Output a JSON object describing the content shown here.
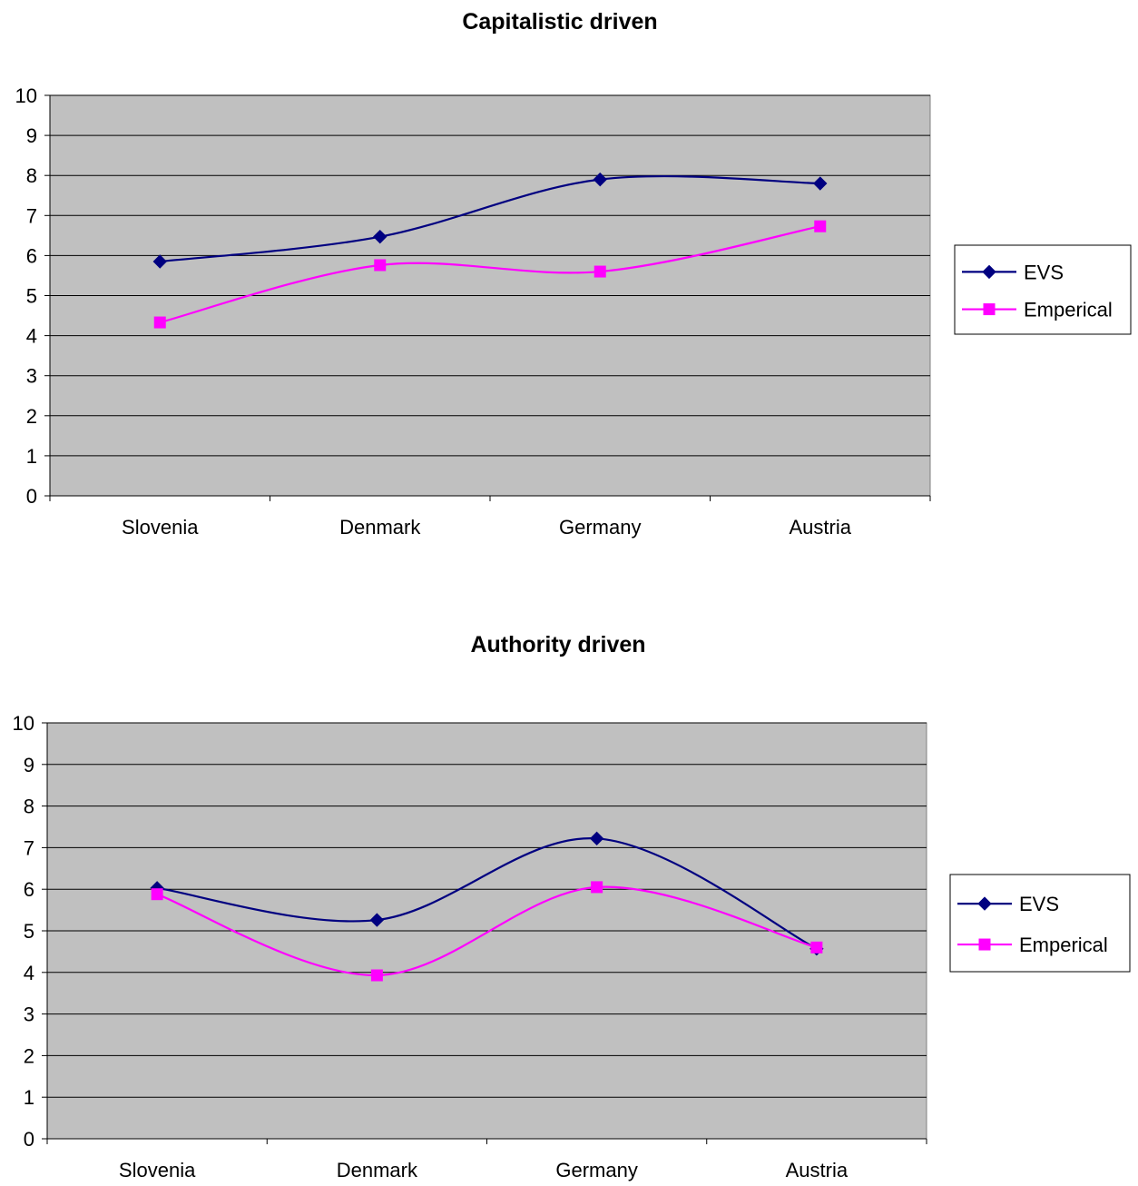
{
  "colors": {
    "plot_background": "#c0c0c0",
    "grid": "#000000",
    "evs": "#000080",
    "emperical": "#ff00ff"
  },
  "chart_data": [
    {
      "type": "line",
      "title": "Capitalistic driven",
      "categories": [
        "Slovenia",
        "Denmark",
        "Germany",
        "Austria"
      ],
      "series": [
        {
          "name": "EVS",
          "marker": "diamond",
          "values": [
            5.85,
            6.47,
            7.9,
            7.8
          ]
        },
        {
          "name": "Emperical",
          "marker": "square",
          "values": [
            4.33,
            5.76,
            5.6,
            6.73
          ]
        }
      ],
      "ylim": [
        0,
        10
      ],
      "yticks": [
        "0",
        "1",
        "2",
        "3",
        "4",
        "5",
        "6",
        "7",
        "8",
        "9",
        "10"
      ],
      "smoothed": true,
      "grid": true,
      "legend": "right"
    },
    {
      "type": "line",
      "title": "Authority driven",
      "categories": [
        "Slovenia",
        "Denmark",
        "Germany",
        "Austria"
      ],
      "series": [
        {
          "name": "EVS",
          "marker": "diamond",
          "values": [
            6.03,
            5.26,
            7.22,
            4.57
          ]
        },
        {
          "name": "Emperical",
          "marker": "square",
          "values": [
            5.88,
            3.93,
            6.05,
            4.6
          ]
        }
      ],
      "ylim": [
        0,
        10
      ],
      "yticks": [
        "0",
        "1",
        "2",
        "3",
        "4",
        "5",
        "6",
        "7",
        "8",
        "9",
        "10"
      ],
      "smoothed": true,
      "grid": true,
      "legend": "right"
    }
  ]
}
